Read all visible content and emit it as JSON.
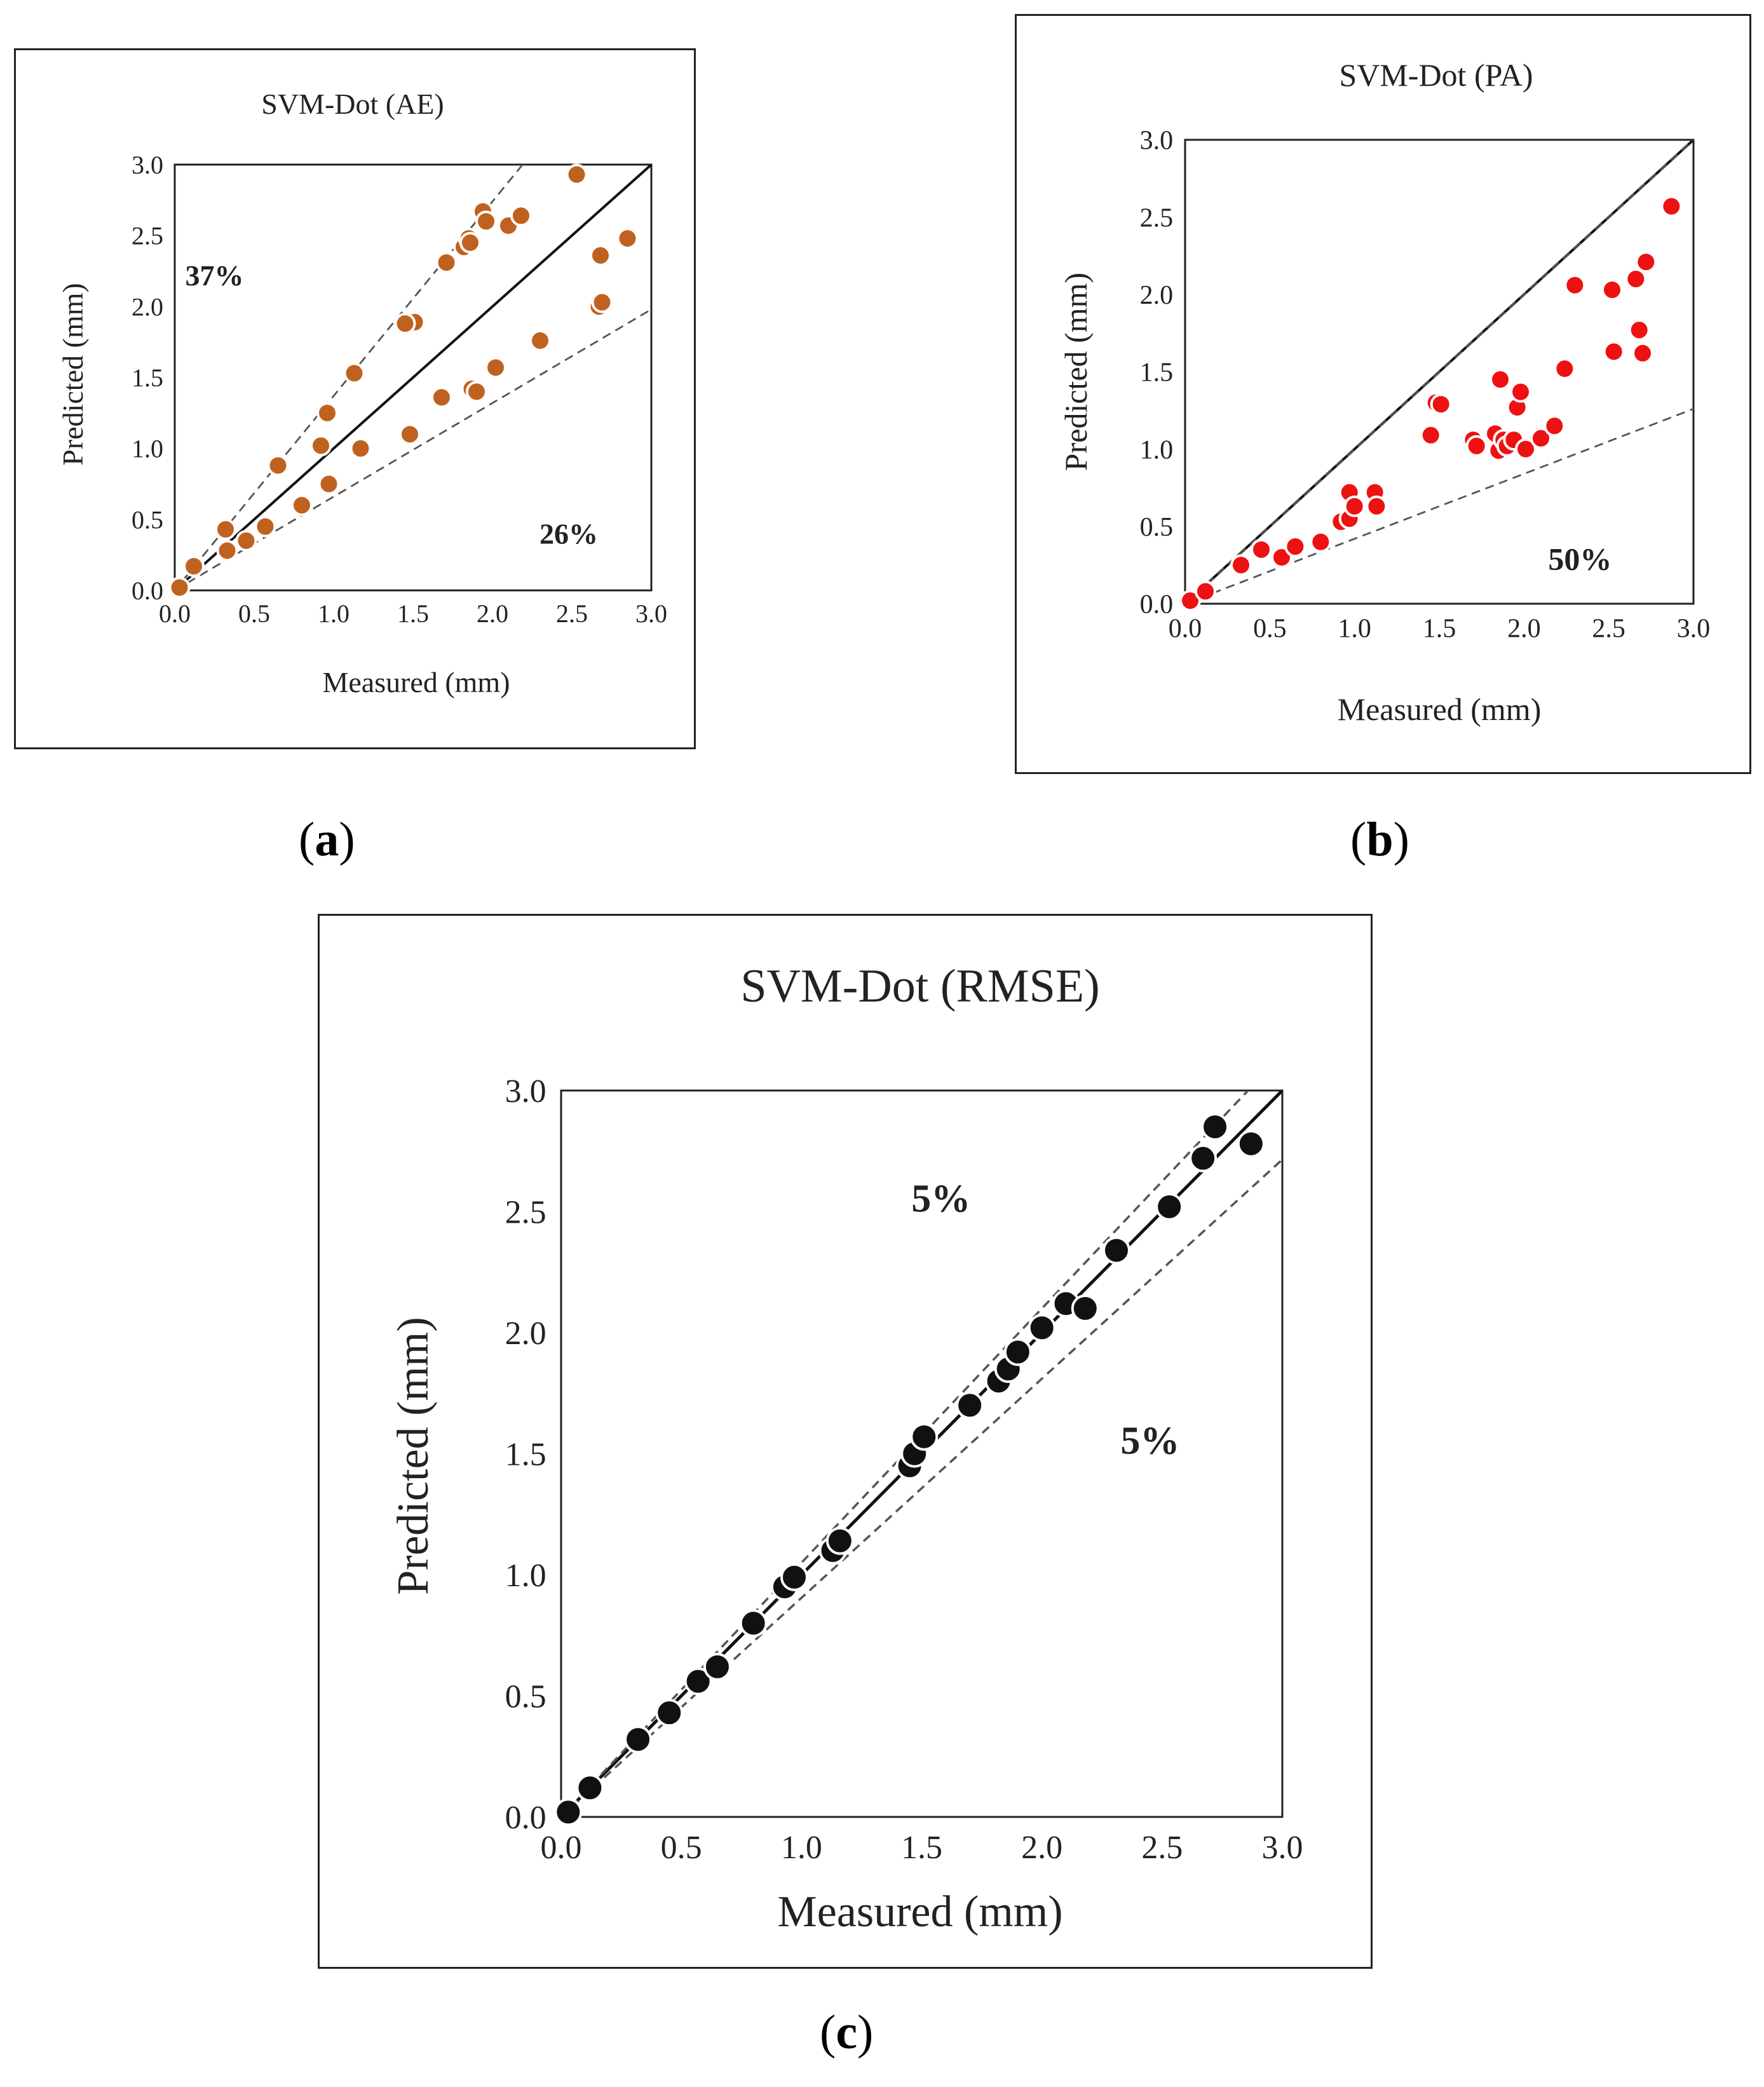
{
  "captions": {
    "a": "a",
    "b": "b",
    "c": "c"
  },
  "colors": {
    "ae": "#c0621f",
    "pa": "#ee1111",
    "rmse": "#111111"
  },
  "chart_data": [
    {
      "id": "ae",
      "type": "scatter",
      "title": "SVM-Dot (AE)",
      "xlabel": "Measured (mm)",
      "ylabel": "Predicted (mm)",
      "xlim": [
        0,
        3.0
      ],
      "ylim": [
        0,
        3.0
      ],
      "ticks": [
        "0.0",
        "0.5",
        "1.0",
        "1.5",
        "2.0",
        "2.5",
        "3.0"
      ],
      "marker_color": "#c0621f",
      "bounds": {
        "upper_slope": 1.37,
        "lower_slope": 0.66
      },
      "annotations": [
        {
          "text": "37%",
          "x": 0.25,
          "y": 2.15
        },
        {
          "text": "26%",
          "x": 2.48,
          "y": 0.33
        }
      ],
      "x": [
        0.03,
        0.12,
        0.32,
        0.33,
        0.45,
        0.57,
        0.65,
        0.8,
        0.92,
        0.96,
        0.97,
        1.13,
        1.17,
        1.45,
        1.48,
        1.51,
        1.45,
        1.68,
        1.71,
        1.82,
        1.85,
        1.87,
        1.86,
        1.9,
        1.94,
        1.96,
        2.02,
        2.1,
        2.18,
        2.3,
        2.53,
        2.67,
        2.68,
        2.69,
        2.85
      ],
      "y": [
        0.02,
        0.17,
        0.43,
        0.28,
        0.35,
        0.45,
        0.88,
        0.6,
        1.02,
        1.25,
        0.75,
        1.53,
        1.0,
        1.87,
        1.1,
        1.89,
        1.88,
        1.36,
        2.31,
        2.42,
        2.48,
        1.42,
        2.45,
        1.4,
        2.67,
        2.6,
        1.57,
        2.57,
        2.64,
        1.76,
        2.93,
        2.0,
        2.36,
        2.03,
        2.48
      ]
    },
    {
      "id": "pa",
      "type": "scatter",
      "title": "SVM-Dot (PA)",
      "xlabel": "Measured (mm)",
      "ylabel": "Predicted (mm)",
      "xlim": [
        0,
        3.0
      ],
      "ylim": [
        0,
        3.0
      ],
      "ticks": [
        "0.0",
        "0.5",
        "1.0",
        "1.5",
        "2.0",
        "2.5",
        "3.0"
      ],
      "marker_color": "#ee1111",
      "bounds": {
        "upper_slope": 1.0,
        "lower_slope": 0.42
      },
      "annotations": [
        {
          "text": "50%",
          "x": 2.33,
          "y": 0.22
        }
      ],
      "x": [
        0.03,
        0.12,
        0.33,
        0.45,
        0.57,
        0.65,
        0.8,
        0.92,
        0.97,
        0.97,
        1.0,
        1.12,
        1.13,
        1.45,
        1.48,
        1.51,
        1.7,
        1.72,
        1.83,
        1.86,
        1.85,
        1.88,
        1.9,
        1.94,
        1.96,
        1.98,
        2.01,
        2.1,
        2.18,
        2.24,
        2.3,
        2.52,
        2.53,
        2.66,
        2.68,
        2.7,
        2.72,
        2.87
      ],
      "y": [
        0.02,
        0.08,
        0.25,
        0.35,
        0.3,
        0.37,
        0.4,
        0.53,
        0.72,
        0.55,
        0.63,
        0.72,
        0.63,
        1.09,
        1.3,
        1.29,
        1.06,
        1.02,
        1.1,
        1.45,
        0.99,
        1.06,
        1.02,
        1.06,
        1.27,
        1.37,
        1.0,
        1.07,
        1.15,
        1.52,
        2.06,
        2.03,
        1.63,
        2.1,
        1.77,
        1.62,
        2.21,
        2.57
      ]
    },
    {
      "id": "rmse",
      "type": "scatter",
      "title": "SVM-Dot (RMSE)",
      "xlabel": "Measured (mm)",
      "ylabel": "Predicted (mm)",
      "xlim": [
        0,
        3.0
      ],
      "ylim": [
        0,
        3.0
      ],
      "ticks": [
        "0.0",
        "0.5",
        "1.0",
        "1.5",
        "2.0",
        "2.5",
        "3.0"
      ],
      "marker_color": "#111111",
      "bounds": {
        "upper_slope": 1.05,
        "lower_slope": 0.905
      },
      "annotations": [
        {
          "text": "5%",
          "x": 1.58,
          "y": 2.5
        },
        {
          "text": "5%",
          "x": 2.45,
          "y": 1.5
        }
      ],
      "x": [
        0.03,
        0.12,
        0.32,
        0.45,
        0.57,
        0.65,
        0.8,
        0.93,
        0.97,
        1.13,
        1.16,
        1.45,
        1.47,
        1.51,
        1.7,
        1.82,
        1.86,
        1.9,
        2.0,
        2.1,
        2.18,
        2.31,
        2.53,
        2.67,
        2.72,
        2.87
      ],
      "y": [
        0.02,
        0.12,
        0.32,
        0.43,
        0.56,
        0.62,
        0.8,
        0.95,
        0.99,
        1.1,
        1.14,
        1.45,
        1.5,
        1.57,
        1.7,
        1.8,
        1.85,
        1.92,
        2.02,
        2.12,
        2.1,
        2.34,
        2.52,
        2.72,
        2.85,
        2.78
      ]
    }
  ]
}
